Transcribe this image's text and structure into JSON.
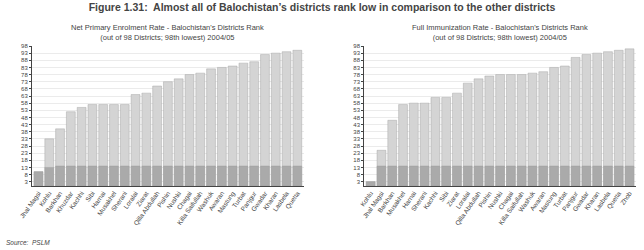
{
  "title": "Figure 1.31:  Almost all of Balochistan’s districts rank low in comparison to the other districts",
  "annotations": [
    "Source:  PSLM"
  ],
  "chart_data": [
    {
      "type": "bar",
      "title": "Net Primary Enrolment Rate - Balochistan's Districts Rank",
      "subtitle": "(out of 98 Districts; 98th lowest) 2004/05",
      "categories": [
        "Jhal Magsi",
        "Kohlu",
        "Barkhan",
        "Khuzdar",
        "Kachhi",
        "Sibi",
        "Harnai",
        "Musakhel",
        "Sherani",
        "Loralai",
        "Ziarat",
        "Qilla Abdullah",
        "Pishin",
        "Nushki",
        "Chagai",
        "Killa Saifullah",
        "Washuk",
        "Awaran",
        "Mastung",
        "Turbat",
        "Panjgur",
        "Gwadar",
        "Kharan",
        "Lasbela",
        "Quetta"
      ],
      "series": [
        {
          "color": "#d4d4d4",
          "values": [
            10,
            33,
            40,
            52,
            55,
            57,
            57,
            57,
            57,
            64,
            65,
            70,
            73,
            75,
            78,
            79,
            82,
            83,
            84,
            86,
            87,
            92,
            93,
            94,
            95
          ]
        },
        {
          "color": "#aaaaaa",
          "values": [
            10,
            13,
            14,
            14,
            14,
            14,
            14,
            14,
            14,
            14,
            14,
            14,
            14,
            14,
            14,
            14,
            14,
            14,
            14,
            14,
            14,
            14,
            14,
            14,
            14
          ]
        }
      ],
      "stacked": false,
      "ylim": [
        0,
        98
      ],
      "yticks": [
        3,
        8,
        13,
        18,
        23,
        28,
        33,
        38,
        43,
        48,
        53,
        58,
        63,
        68,
        73,
        78,
        83,
        88,
        93,
        98
      ],
      "grid": true
    },
    {
      "type": "bar",
      "title": "Full Immunization Rate - Balochistan's Districts Rank",
      "subtitle": "(out of 98 Districts; 98th lowest) 2004/05",
      "categories": [
        "Kohlu",
        "Jhal Magsi",
        "Barkhan",
        "Musakhel",
        "Harnai",
        "Sherani",
        "Kachhi",
        "Sibi",
        "Ziarat",
        "Loralai",
        "Qilla Abdullah",
        "Pishin",
        "Nushki",
        "Chagai",
        "Killa Saifullah",
        "Washuk",
        "Awaran",
        "Mastung",
        "Turbat",
        "Panjgur",
        "Gwadar",
        "Kharan",
        "Lasbela",
        "Quetta",
        "Zhob"
      ],
      "series": [
        {
          "color": "#d4d4d4",
          "values": [
            3,
            25,
            46,
            57,
            58,
            58,
            62,
            62,
            65,
            72,
            75,
            77,
            78,
            78,
            78,
            79,
            80,
            83,
            84,
            90,
            92,
            93,
            94,
            95,
            96
          ]
        },
        {
          "color": "#aaaaaa",
          "values": [
            3,
            14,
            14,
            14,
            14,
            14,
            14,
            14,
            14,
            14,
            14,
            14,
            14,
            14,
            14,
            14,
            14,
            14,
            14,
            14,
            14,
            14,
            14,
            14,
            14
          ]
        }
      ],
      "stacked": false,
      "ylim": [
        0,
        98
      ],
      "yticks": [
        3,
        8,
        13,
        18,
        23,
        28,
        33,
        38,
        43,
        48,
        53,
        58,
        63,
        68,
        73,
        78,
        83,
        88,
        93,
        98
      ],
      "grid": true
    }
  ]
}
